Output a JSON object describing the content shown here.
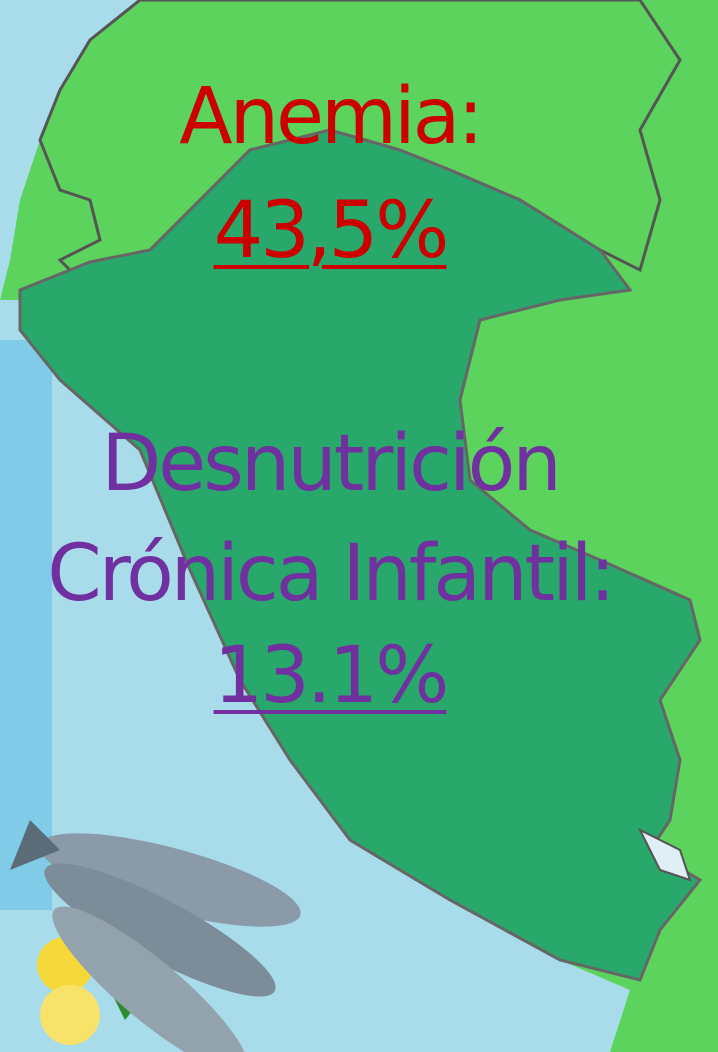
{
  "stats": [
    {
      "label_lines": [
        "Anemia:"
      ],
      "value": "43,5%"
    },
    {
      "label_lines": [
        "Desnutrición",
        "Crónica Infantil:"
      ],
      "value": "13.1%"
    }
  ]
}
